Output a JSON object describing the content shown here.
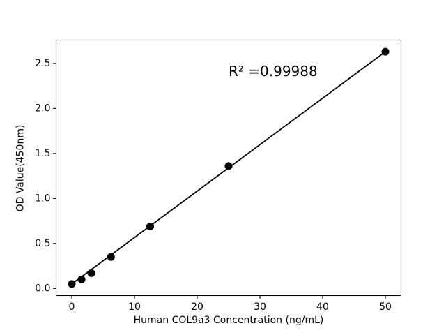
{
  "chart_data": {
    "type": "scatter",
    "title": "",
    "xlabel": "Human COL9a3 Concentration (ng/mL)",
    "ylabel": "OD Value(450nm)",
    "x": [
      0,
      1.56,
      3.12,
      6.25,
      12.5,
      25,
      50
    ],
    "y": [
      0.05,
      0.1,
      0.17,
      0.35,
      0.69,
      1.36,
      2.63
    ],
    "fit_line": {
      "x": [
        0,
        50
      ],
      "y": [
        0.05,
        2.63
      ]
    },
    "annotation": {
      "text": "R² =0.99988",
      "x": 25,
      "y": 2.41
    },
    "xlim": [
      -2.5,
      52.5
    ],
    "ylim": [
      -0.079,
      2.759
    ],
    "x_ticks": [
      0,
      10,
      20,
      30,
      40,
      50
    ],
    "x_tick_labels": [
      "0",
      "10",
      "20",
      "30",
      "40",
      "50"
    ],
    "y_ticks": [
      0.0,
      0.5,
      1.0,
      1.5,
      2.0,
      2.5
    ],
    "y_tick_labels": [
      "0.0",
      "0.5",
      "1.0",
      "1.5",
      "2.0",
      "2.5"
    ],
    "grid": false,
    "legend": null,
    "colors": {
      "marker": "#000000",
      "line": "#000000",
      "axis": "#000000",
      "background": "#ffffff"
    }
  }
}
